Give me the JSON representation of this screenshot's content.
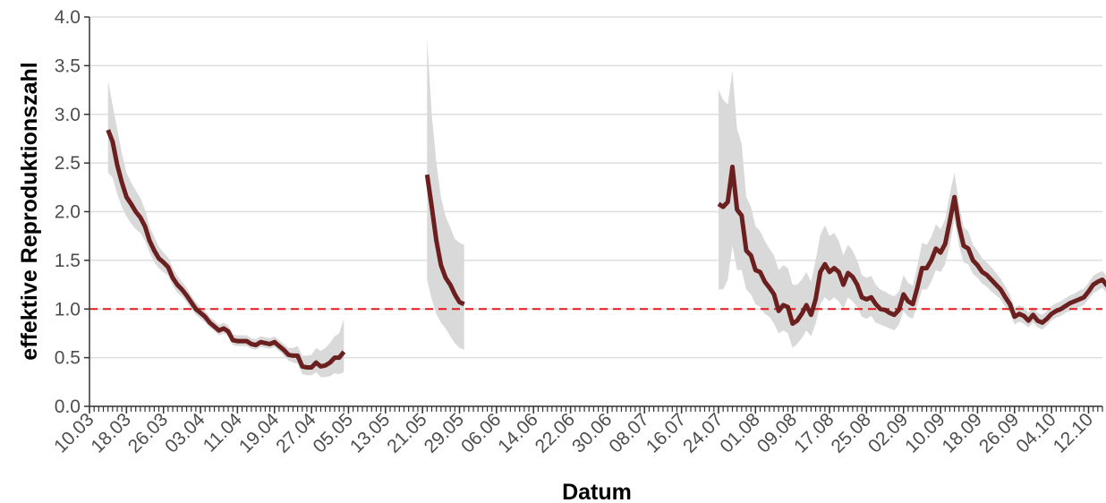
{
  "chart_data": {
    "type": "line",
    "title": "",
    "xlabel": "Datum",
    "ylabel": "effektive Reproduktionszahl",
    "x_range": [
      "2020-03-10",
      "2020-10-15"
    ],
    "ylim": [
      0,
      4
    ],
    "y_ticks": [
      0.0,
      0.5,
      1.0,
      1.5,
      2.0,
      2.5,
      3.0,
      3.5,
      4.0
    ],
    "y_tick_labels": [
      "0.0",
      "0.5",
      "1.0",
      "1.5",
      "2.0",
      "2.5",
      "3.0",
      "3.5",
      "4.0"
    ],
    "x_ticks": [
      "2020-03-10",
      "2020-03-18",
      "2020-03-26",
      "2020-04-03",
      "2020-04-11",
      "2020-04-19",
      "2020-04-27",
      "2020-05-05",
      "2020-05-13",
      "2020-05-21",
      "2020-05-29",
      "2020-06-06",
      "2020-06-14",
      "2020-06-22",
      "2020-06-30",
      "2020-07-08",
      "2020-07-16",
      "2020-07-24",
      "2020-08-01",
      "2020-08-09",
      "2020-08-17",
      "2020-08-25",
      "2020-09-02",
      "2020-09-10",
      "2020-09-18",
      "2020-09-26",
      "2020-10-04",
      "2020-10-12"
    ],
    "x_tick_labels": [
      "10.03",
      "18.03",
      "26.03",
      "03.04",
      "11.04",
      "19.04",
      "27.04",
      "05.05",
      "13.05",
      "21.05",
      "29.05",
      "06.06",
      "14.06",
      "22.06",
      "30.06",
      "08.07",
      "16.07",
      "24.07",
      "01.08",
      "09.08",
      "17.08",
      "25.08",
      "02.09",
      "10.09",
      "18.09",
      "26.09",
      "04.10",
      "12.10"
    ],
    "reference_line": {
      "y": 1.0,
      "style": "dashed",
      "color": "#e31a1c"
    },
    "grid": "horizontal",
    "legend": "none",
    "colors": {
      "line": "#6b1f1f",
      "band": "#d9d9d9",
      "grid": "#dedede",
      "axis": "#333333"
    },
    "series": [
      {
        "points": [
          [
            "2020-03-14",
            2.84,
            2.4,
            3.35
          ],
          [
            "2020-03-15",
            2.72,
            2.35,
            3.1
          ],
          [
            "2020-03-16",
            2.48,
            2.18,
            2.85
          ],
          [
            "2020-03-17",
            2.3,
            2.05,
            2.6
          ],
          [
            "2020-03-18",
            2.15,
            1.95,
            2.4
          ],
          [
            "2020-03-19",
            2.08,
            1.88,
            2.3
          ],
          [
            "2020-03-20",
            2.0,
            1.82,
            2.22
          ],
          [
            "2020-03-21",
            1.94,
            1.78,
            2.14
          ],
          [
            "2020-03-22",
            1.85,
            1.7,
            2.02
          ],
          [
            "2020-03-23",
            1.7,
            1.58,
            1.85
          ],
          [
            "2020-03-24",
            1.6,
            1.48,
            1.74
          ],
          [
            "2020-03-25",
            1.52,
            1.42,
            1.64
          ],
          [
            "2020-03-26",
            1.48,
            1.38,
            1.58
          ],
          [
            "2020-03-27",
            1.43,
            1.34,
            1.53
          ],
          [
            "2020-03-28",
            1.32,
            1.24,
            1.42
          ],
          [
            "2020-03-29",
            1.25,
            1.17,
            1.34
          ],
          [
            "2020-03-30",
            1.2,
            1.13,
            1.28
          ],
          [
            "2020-03-31",
            1.14,
            1.07,
            1.22
          ],
          [
            "2020-04-01",
            1.07,
            1.0,
            1.14
          ],
          [
            "2020-04-02",
            1.0,
            0.94,
            1.07
          ],
          [
            "2020-04-03",
            0.96,
            0.9,
            1.02
          ],
          [
            "2020-04-04",
            0.92,
            0.86,
            0.98
          ],
          [
            "2020-04-05",
            0.86,
            0.81,
            0.92
          ],
          [
            "2020-04-06",
            0.82,
            0.77,
            0.88
          ],
          [
            "2020-04-07",
            0.78,
            0.73,
            0.84
          ],
          [
            "2020-04-08",
            0.8,
            0.75,
            0.86
          ],
          [
            "2020-04-09",
            0.77,
            0.72,
            0.83
          ],
          [
            "2020-04-10",
            0.68,
            0.63,
            0.74
          ],
          [
            "2020-04-11",
            0.67,
            0.62,
            0.73
          ],
          [
            "2020-04-12",
            0.67,
            0.62,
            0.73
          ],
          [
            "2020-04-13",
            0.67,
            0.62,
            0.73
          ],
          [
            "2020-04-14",
            0.64,
            0.59,
            0.7
          ],
          [
            "2020-04-15",
            0.63,
            0.58,
            0.69
          ],
          [
            "2020-04-16",
            0.66,
            0.61,
            0.72
          ],
          [
            "2020-04-17",
            0.65,
            0.6,
            0.71
          ],
          [
            "2020-04-18",
            0.64,
            0.59,
            0.7
          ],
          [
            "2020-04-19",
            0.66,
            0.61,
            0.72
          ],
          [
            "2020-04-20",
            0.62,
            0.57,
            0.68
          ],
          [
            "2020-04-21",
            0.58,
            0.52,
            0.64
          ],
          [
            "2020-04-22",
            0.53,
            0.47,
            0.6
          ],
          [
            "2020-04-23",
            0.52,
            0.45,
            0.6
          ],
          [
            "2020-04-24",
            0.52,
            0.44,
            0.62
          ],
          [
            "2020-04-25",
            0.41,
            0.33,
            0.52
          ],
          [
            "2020-04-26",
            0.4,
            0.32,
            0.52
          ],
          [
            "2020-04-27",
            0.4,
            0.32,
            0.53
          ],
          [
            "2020-04-28",
            0.45,
            0.35,
            0.6
          ],
          [
            "2020-04-29",
            0.41,
            0.3,
            0.57
          ],
          [
            "2020-04-30",
            0.42,
            0.3,
            0.6
          ],
          [
            "2020-05-01",
            0.45,
            0.31,
            0.65
          ],
          [
            "2020-05-02",
            0.5,
            0.34,
            0.72
          ],
          [
            "2020-05-03",
            0.5,
            0.33,
            0.75
          ],
          [
            "2020-05-04",
            0.56,
            0.35,
            0.9
          ]
        ]
      },
      {
        "points": [
          [
            "2020-05-22",
            2.38,
            1.3,
            3.78
          ],
          [
            "2020-05-23",
            2.05,
            1.1,
            3.0
          ],
          [
            "2020-05-24",
            1.7,
            0.95,
            2.5
          ],
          [
            "2020-05-25",
            1.45,
            0.86,
            2.15
          ],
          [
            "2020-05-26",
            1.32,
            0.8,
            1.95
          ],
          [
            "2020-05-27",
            1.25,
            0.72,
            1.84
          ],
          [
            "2020-05-28",
            1.15,
            0.65,
            1.72
          ],
          [
            "2020-05-29",
            1.07,
            0.6,
            1.68
          ],
          [
            "2020-05-30",
            1.05,
            0.58,
            1.66
          ]
        ]
      },
      {
        "points": [
          [
            "2020-07-24",
            2.08,
            1.2,
            3.25
          ],
          [
            "2020-07-25",
            2.05,
            1.2,
            3.15
          ],
          [
            "2020-07-26",
            2.1,
            1.3,
            3.1
          ],
          [
            "2020-07-27",
            2.46,
            1.65,
            3.45
          ],
          [
            "2020-07-28",
            2.02,
            1.4,
            2.85
          ],
          [
            "2020-07-29",
            1.96,
            1.4,
            2.7
          ],
          [
            "2020-07-30",
            1.6,
            1.2,
            2.15
          ],
          [
            "2020-07-31",
            1.55,
            1.15,
            2.05
          ],
          [
            "2020-08-01",
            1.4,
            1.05,
            1.85
          ],
          [
            "2020-08-02",
            1.38,
            1.02,
            1.8
          ],
          [
            "2020-08-03",
            1.28,
            0.95,
            1.7
          ],
          [
            "2020-08-04",
            1.22,
            0.92,
            1.62
          ],
          [
            "2020-08-05",
            1.15,
            0.85,
            1.55
          ],
          [
            "2020-08-06",
            0.98,
            0.75,
            1.4
          ],
          [
            "2020-08-07",
            1.04,
            0.78,
            1.45
          ],
          [
            "2020-08-08",
            1.02,
            0.75,
            1.42
          ],
          [
            "2020-08-09",
            0.85,
            0.6,
            1.25
          ],
          [
            "2020-08-10",
            0.88,
            0.64,
            1.25
          ],
          [
            "2020-08-11",
            0.95,
            0.7,
            1.3
          ],
          [
            "2020-08-12",
            1.04,
            0.78,
            1.38
          ],
          [
            "2020-08-13",
            0.94,
            0.72,
            1.28
          ],
          [
            "2020-08-14",
            1.1,
            0.85,
            1.5
          ],
          [
            "2020-08-15",
            1.38,
            1.05,
            1.76
          ],
          [
            "2020-08-16",
            1.46,
            1.12,
            1.86
          ],
          [
            "2020-08-17",
            1.38,
            1.08,
            1.75
          ],
          [
            "2020-08-18",
            1.42,
            1.12,
            1.78
          ],
          [
            "2020-08-19",
            1.38,
            1.08,
            1.7
          ],
          [
            "2020-08-20",
            1.25,
            1.0,
            1.55
          ],
          [
            "2020-08-21",
            1.37,
            1.12,
            1.66
          ],
          [
            "2020-08-22",
            1.33,
            1.08,
            1.6
          ],
          [
            "2020-08-23",
            1.25,
            1.02,
            1.5
          ],
          [
            "2020-08-24",
            1.12,
            0.92,
            1.35
          ],
          [
            "2020-08-25",
            1.1,
            0.9,
            1.32
          ],
          [
            "2020-08-26",
            1.12,
            0.93,
            1.34
          ],
          [
            "2020-08-27",
            1.05,
            0.86,
            1.25
          ],
          [
            "2020-08-28",
            1.0,
            0.84,
            1.2
          ],
          [
            "2020-08-29",
            0.99,
            0.82,
            1.18
          ],
          [
            "2020-08-30",
            0.96,
            0.8,
            1.15
          ],
          [
            "2020-08-31",
            0.94,
            0.78,
            1.13
          ],
          [
            "2020-09-01",
            0.99,
            0.84,
            1.18
          ],
          [
            "2020-09-02",
            1.15,
            0.98,
            1.35
          ],
          [
            "2020-09-03",
            1.08,
            0.92,
            1.27
          ],
          [
            "2020-09-04",
            1.05,
            0.9,
            1.24
          ],
          [
            "2020-09-05",
            1.22,
            1.04,
            1.44
          ],
          [
            "2020-09-06",
            1.42,
            1.2,
            1.68
          ],
          [
            "2020-09-07",
            1.42,
            1.2,
            1.66
          ],
          [
            "2020-09-08",
            1.5,
            1.28,
            1.74
          ],
          [
            "2020-09-09",
            1.62,
            1.4,
            1.87
          ],
          [
            "2020-09-10",
            1.58,
            1.38,
            1.82
          ],
          [
            "2020-09-11",
            1.67,
            1.46,
            1.92
          ],
          [
            "2020-09-12",
            1.9,
            1.65,
            2.18
          ],
          [
            "2020-09-13",
            2.15,
            1.92,
            2.4
          ],
          [
            "2020-09-14",
            1.85,
            1.65,
            2.08
          ],
          [
            "2020-09-15",
            1.65,
            1.48,
            1.84
          ],
          [
            "2020-09-16",
            1.62,
            1.46,
            1.8
          ],
          [
            "2020-09-17",
            1.5,
            1.36,
            1.66
          ],
          [
            "2020-09-18",
            1.45,
            1.32,
            1.6
          ],
          [
            "2020-09-19",
            1.38,
            1.26,
            1.52
          ],
          [
            "2020-09-20",
            1.35,
            1.23,
            1.48
          ],
          [
            "2020-09-21",
            1.3,
            1.18,
            1.43
          ],
          [
            "2020-09-22",
            1.25,
            1.14,
            1.37
          ],
          [
            "2020-09-23",
            1.2,
            1.1,
            1.31
          ],
          [
            "2020-09-24",
            1.12,
            1.02,
            1.23
          ],
          [
            "2020-09-25",
            1.05,
            0.96,
            1.15
          ],
          [
            "2020-09-26",
            0.92,
            0.84,
            1.01
          ],
          [
            "2020-09-27",
            0.95,
            0.87,
            1.04
          ],
          [
            "2020-09-28",
            0.93,
            0.85,
            1.02
          ],
          [
            "2020-09-29",
            0.88,
            0.81,
            0.96
          ],
          [
            "2020-09-30",
            0.94,
            0.86,
            1.02
          ],
          [
            "2020-10-01",
            0.88,
            0.81,
            0.96
          ],
          [
            "2020-10-02",
            0.86,
            0.79,
            0.94
          ],
          [
            "2020-10-03",
            0.9,
            0.83,
            0.98
          ],
          [
            "2020-10-04",
            0.95,
            0.88,
            1.03
          ],
          [
            "2020-10-05",
            0.98,
            0.91,
            1.06
          ],
          [
            "2020-10-06",
            1.0,
            0.93,
            1.08
          ],
          [
            "2020-10-07",
            1.03,
            0.96,
            1.11
          ],
          [
            "2020-10-08",
            1.06,
            0.98,
            1.14
          ],
          [
            "2020-10-09",
            1.08,
            1.0,
            1.16
          ],
          [
            "2020-10-10",
            1.1,
            1.02,
            1.19
          ],
          [
            "2020-10-11",
            1.12,
            1.04,
            1.21
          ],
          [
            "2020-10-12",
            1.18,
            1.1,
            1.27
          ],
          [
            "2020-10-13",
            1.25,
            1.16,
            1.34
          ],
          [
            "2020-10-14",
            1.28,
            1.19,
            1.37
          ],
          [
            "2020-10-15",
            1.3,
            1.22,
            1.39
          ],
          [
            "2020-10-16",
            1.24,
            1.16,
            1.33
          ],
          [
            "2020-10-17",
            1.22,
            1.14,
            1.31
          ]
        ]
      }
    ]
  }
}
